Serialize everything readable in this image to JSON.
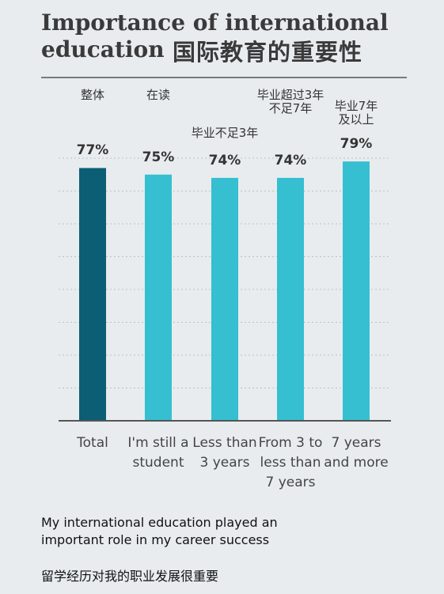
{
  "header": {
    "title_en": "Importance of international\neducation",
    "title_zh": "国际教育的重要性"
  },
  "chart_data": {
    "type": "bar",
    "categories": [
      "Total",
      "I'm still a\nstudent",
      "Less than\n3 years",
      "From 3 to\nless than\n7 years",
      "7 years\nand more"
    ],
    "categories_zh": [
      "整体",
      "在读",
      "毕业不足3年",
      "毕业超过3年\n不足7年",
      "毕业7年\n及以上"
    ],
    "values": [
      77,
      75,
      74,
      74,
      79
    ],
    "value_labels": [
      "77%",
      "75%",
      "74%",
      "74%",
      "79%"
    ],
    "bar_colors": [
      "#0b5e73",
      "#35bfd0",
      "#35bfd0",
      "#35bfd0",
      "#35bfd0"
    ],
    "ylim": [
      0,
      100
    ],
    "grid": true
  },
  "caption": {
    "en": "My international education played an important role in my career success",
    "zh": "留学经历对我的职业发展很重要"
  }
}
